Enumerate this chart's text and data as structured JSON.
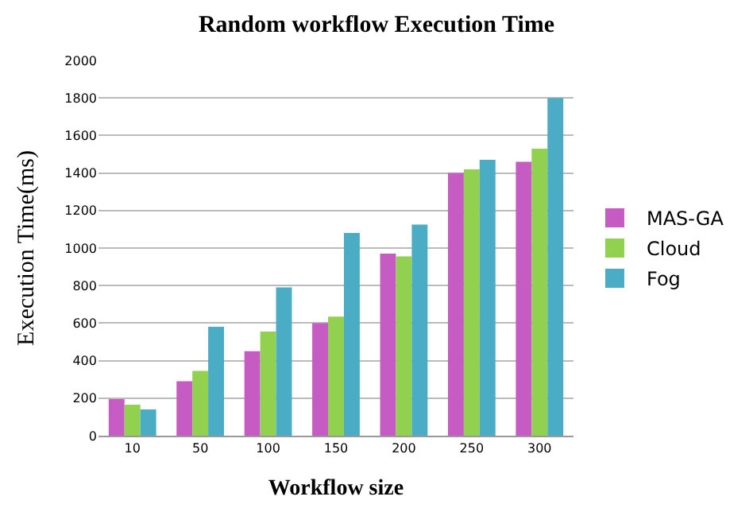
{
  "chart_data": {
    "type": "bar",
    "title": "Random workflow Execution Time",
    "xlabel": "Workflow size",
    "ylabel": "Execution Time(ms)",
    "categories": [
      "10",
      "50",
      "100",
      "150",
      "200",
      "250",
      "300"
    ],
    "series": [
      {
        "name": "MAS-GA",
        "color": "#c75bc4",
        "values": [
          195,
          290,
          450,
          600,
          970,
          1400,
          1460
        ]
      },
      {
        "name": "Cloud",
        "color": "#92d050",
        "values": [
          165,
          345,
          555,
          635,
          955,
          1420,
          1530
        ]
      },
      {
        "name": "Fog",
        "color": "#4bacc6",
        "values": [
          140,
          580,
          790,
          1080,
          1125,
          1470,
          1800
        ]
      }
    ],
    "ylim": [
      0,
      2000
    ],
    "yticks": [
      0,
      200,
      400,
      600,
      800,
      1000,
      1200,
      1400,
      1600,
      1800,
      2000
    ],
    "grid": "y",
    "legend": "right"
  }
}
